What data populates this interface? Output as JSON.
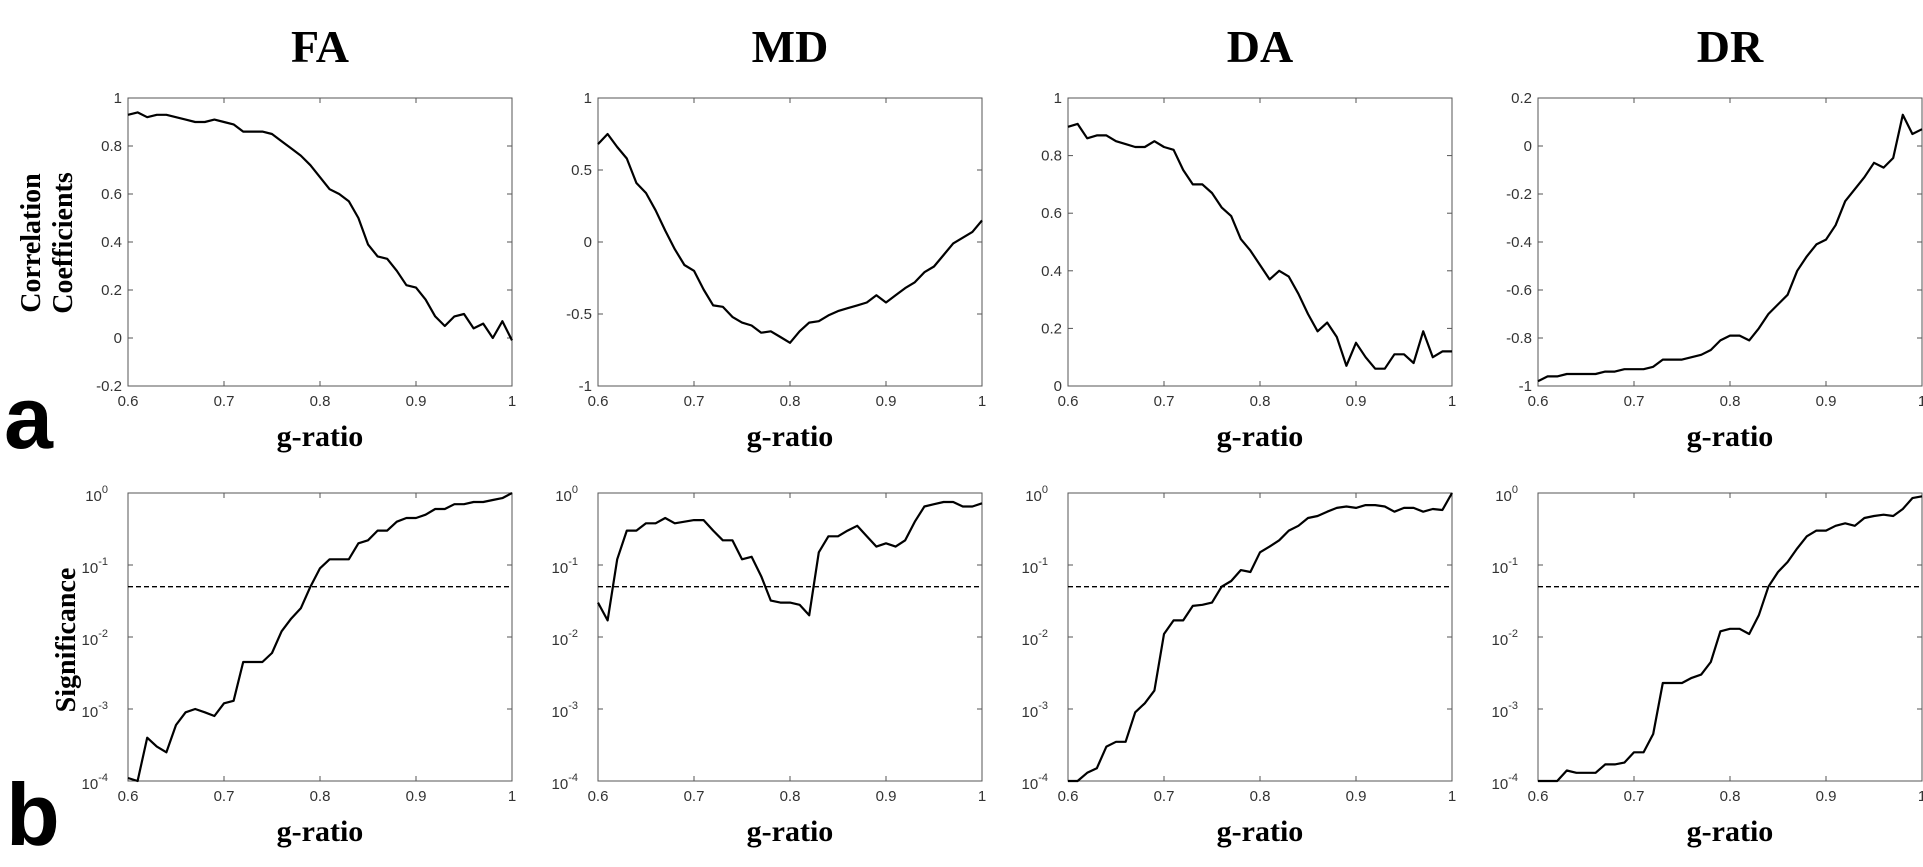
{
  "figure": {
    "row_labels": [
      "a",
      "b"
    ],
    "row_a_ylabel": [
      "Correlation",
      "Coefficients"
    ],
    "row_b_ylabel": "Significance"
  },
  "chart_data": [
    {
      "type": "line",
      "row": "a",
      "title": "FA",
      "xlabel": "g-ratio",
      "ylabel": "Correlation Coefficients",
      "xlim": [
        0.6,
        1
      ],
      "ylim": [
        -0.2,
        1
      ],
      "xticks": [
        0.6,
        0.7,
        0.8,
        0.9,
        1
      ],
      "xtick_labels": [
        "0.6",
        "0.7",
        "0.8",
        "0.9",
        "1"
      ],
      "yticks": [
        -0.2,
        0,
        0.2,
        0.4,
        0.6,
        0.8,
        1
      ],
      "ytick_labels": [
        "-0.2",
        "0",
        "0.2",
        "0.4",
        "0.6",
        "0.8",
        "1"
      ],
      "x": [
        0.6,
        0.61,
        0.62,
        0.63,
        0.64,
        0.65,
        0.66,
        0.67,
        0.68,
        0.69,
        0.7,
        0.71,
        0.72,
        0.73,
        0.74,
        0.75,
        0.76,
        0.77,
        0.78,
        0.79,
        0.8,
        0.81,
        0.82,
        0.83,
        0.84,
        0.85,
        0.86,
        0.87,
        0.88,
        0.89,
        0.9,
        0.91,
        0.92,
        0.93,
        0.94,
        0.95,
        0.96,
        0.97,
        0.98,
        0.99,
        1.0
      ],
      "y": [
        0.93,
        0.94,
        0.92,
        0.93,
        0.93,
        0.92,
        0.91,
        0.9,
        0.9,
        0.91,
        0.9,
        0.89,
        0.86,
        0.86,
        0.86,
        0.85,
        0.82,
        0.79,
        0.76,
        0.72,
        0.67,
        0.62,
        0.6,
        0.57,
        0.5,
        0.39,
        0.34,
        0.33,
        0.28,
        0.22,
        0.21,
        0.16,
        0.09,
        0.05,
        0.09,
        0.1,
        0.04,
        0.06,
        0.0,
        0.07,
        -0.01
      ]
    },
    {
      "type": "line",
      "row": "a",
      "title": "MD",
      "xlabel": "g-ratio",
      "ylabel": "Correlation Coefficients",
      "xlim": [
        0.6,
        1
      ],
      "ylim": [
        -1,
        1
      ],
      "xticks": [
        0.6,
        0.7,
        0.8,
        0.9,
        1
      ],
      "xtick_labels": [
        "0.6",
        "0.7",
        "0.8",
        "0.9",
        "1"
      ],
      "yticks": [
        -1,
        -0.5,
        0,
        0.5,
        1
      ],
      "ytick_labels": [
        "-1",
        "-0.5",
        "0",
        "0.5",
        "1"
      ],
      "x": [
        0.6,
        0.61,
        0.62,
        0.63,
        0.64,
        0.65,
        0.66,
        0.67,
        0.68,
        0.69,
        0.7,
        0.71,
        0.72,
        0.73,
        0.74,
        0.75,
        0.76,
        0.77,
        0.78,
        0.79,
        0.8,
        0.81,
        0.82,
        0.83,
        0.84,
        0.85,
        0.86,
        0.87,
        0.88,
        0.89,
        0.9,
        0.91,
        0.92,
        0.93,
        0.94,
        0.95,
        0.96,
        0.97,
        0.98,
        0.99,
        1.0
      ],
      "y": [
        0.68,
        0.75,
        0.66,
        0.58,
        0.41,
        0.34,
        0.22,
        0.08,
        -0.05,
        -0.16,
        -0.2,
        -0.33,
        -0.44,
        -0.45,
        -0.52,
        -0.56,
        -0.58,
        -0.63,
        -0.62,
        -0.66,
        -0.7,
        -0.62,
        -0.56,
        -0.55,
        -0.51,
        -0.48,
        -0.46,
        -0.44,
        -0.42,
        -0.37,
        -0.42,
        -0.37,
        -0.32,
        -0.28,
        -0.21,
        -0.17,
        -0.09,
        -0.01,
        0.03,
        0.07,
        0.15
      ]
    },
    {
      "type": "line",
      "row": "a",
      "title": "DA",
      "xlabel": "g-ratio",
      "ylabel": "Correlation Coefficients",
      "xlim": [
        0.6,
        1
      ],
      "ylim": [
        0,
        1
      ],
      "xticks": [
        0.6,
        0.7,
        0.8,
        0.9,
        1
      ],
      "xtick_labels": [
        "0.6",
        "0.7",
        "0.8",
        "0.9",
        "1"
      ],
      "yticks": [
        0,
        0.2,
        0.4,
        0.6,
        0.8,
        1
      ],
      "ytick_labels": [
        "0",
        "0.2",
        "0.4",
        "0.6",
        "0.8",
        "1"
      ],
      "x": [
        0.6,
        0.61,
        0.62,
        0.63,
        0.64,
        0.65,
        0.66,
        0.67,
        0.68,
        0.69,
        0.7,
        0.71,
        0.72,
        0.73,
        0.74,
        0.75,
        0.76,
        0.77,
        0.78,
        0.79,
        0.8,
        0.81,
        0.82,
        0.83,
        0.84,
        0.85,
        0.86,
        0.87,
        0.88,
        0.89,
        0.9,
        0.91,
        0.92,
        0.93,
        0.94,
        0.95,
        0.96,
        0.97,
        0.98,
        0.99,
        1.0
      ],
      "y": [
        0.9,
        0.91,
        0.86,
        0.87,
        0.87,
        0.85,
        0.84,
        0.83,
        0.83,
        0.85,
        0.83,
        0.82,
        0.75,
        0.7,
        0.7,
        0.67,
        0.62,
        0.59,
        0.51,
        0.47,
        0.42,
        0.37,
        0.4,
        0.38,
        0.32,
        0.25,
        0.19,
        0.22,
        0.17,
        0.07,
        0.15,
        0.1,
        0.06,
        0.06,
        0.11,
        0.11,
        0.08,
        0.19,
        0.1,
        0.12,
        0.12
      ]
    },
    {
      "type": "line",
      "row": "a",
      "title": "DR",
      "xlabel": "g-ratio",
      "ylabel": "Correlation Coefficients",
      "xlim": [
        0.6,
        1
      ],
      "ylim": [
        -1,
        0.2
      ],
      "xticks": [
        0.6,
        0.7,
        0.8,
        0.9,
        1
      ],
      "xtick_labels": [
        "0.6",
        "0.7",
        "0.8",
        "0.9",
        "1"
      ],
      "yticks": [
        -1,
        -0.8,
        -0.6,
        -0.4,
        -0.2,
        0,
        0.2
      ],
      "ytick_labels": [
        "-1",
        "-0.8",
        "-0.6",
        "-0.4",
        "-0.2",
        "0",
        "0.2"
      ],
      "x": [
        0.6,
        0.61,
        0.62,
        0.63,
        0.64,
        0.65,
        0.66,
        0.67,
        0.68,
        0.69,
        0.7,
        0.71,
        0.72,
        0.73,
        0.74,
        0.75,
        0.76,
        0.77,
        0.78,
        0.79,
        0.8,
        0.81,
        0.82,
        0.83,
        0.84,
        0.85,
        0.86,
        0.87,
        0.88,
        0.89,
        0.9,
        0.91,
        0.92,
        0.93,
        0.94,
        0.95,
        0.96,
        0.97,
        0.98,
        0.99,
        1.0
      ],
      "y": [
        -0.98,
        -0.96,
        -0.96,
        -0.95,
        -0.95,
        -0.95,
        -0.95,
        -0.94,
        -0.94,
        -0.93,
        -0.93,
        -0.93,
        -0.92,
        -0.89,
        -0.89,
        -0.89,
        -0.88,
        -0.87,
        -0.85,
        -0.81,
        -0.79,
        -0.79,
        -0.81,
        -0.76,
        -0.7,
        -0.66,
        -0.62,
        -0.52,
        -0.46,
        -0.41,
        -0.39,
        -0.33,
        -0.23,
        -0.18,
        -0.13,
        -0.07,
        -0.09,
        -0.05,
        0.13,
        0.05,
        0.07
      ]
    },
    {
      "type": "line",
      "row": "b",
      "title": "FA",
      "xlabel": "g-ratio",
      "ylabel": "Significance",
      "xlim": [
        0.6,
        1
      ],
      "ylim": [
        0.0001,
        1
      ],
      "log_y": true,
      "threshold": 0.05,
      "xticks": [
        0.6,
        0.7,
        0.8,
        0.9,
        1
      ],
      "xtick_labels": [
        "0.6",
        "0.7",
        "0.8",
        "0.9",
        "1"
      ],
      "yticks": [
        0.0001,
        0.001,
        0.01,
        0.1,
        1
      ],
      "ytick_bases": [
        "10",
        "10",
        "10",
        "10",
        "10"
      ],
      "ytick_exponents": [
        "-4",
        "-3",
        "-2",
        "-1",
        "0"
      ],
      "x": [
        0.6,
        0.61,
        0.62,
        0.63,
        0.64,
        0.65,
        0.66,
        0.67,
        0.68,
        0.69,
        0.7,
        0.71,
        0.72,
        0.73,
        0.74,
        0.75,
        0.76,
        0.77,
        0.78,
        0.79,
        0.8,
        0.81,
        0.82,
        0.83,
        0.84,
        0.85,
        0.86,
        0.87,
        0.88,
        0.89,
        0.9,
        0.91,
        0.92,
        0.93,
        0.94,
        0.95,
        0.96,
        0.97,
        0.98,
        0.99,
        1.0
      ],
      "y": [
        0.00011,
        0.0001,
        0.0004,
        0.0003,
        0.00025,
        0.0006,
        0.0009,
        0.001,
        0.0009,
        0.0008,
        0.0012,
        0.0013,
        0.0045,
        0.0045,
        0.0045,
        0.006,
        0.012,
        0.018,
        0.025,
        0.05,
        0.09,
        0.12,
        0.12,
        0.12,
        0.2,
        0.22,
        0.3,
        0.3,
        0.4,
        0.45,
        0.45,
        0.5,
        0.6,
        0.6,
        0.7,
        0.7,
        0.75,
        0.75,
        0.8,
        0.85,
        1.0
      ]
    },
    {
      "type": "line",
      "row": "b",
      "title": "MD",
      "xlabel": "g-ratio",
      "ylabel": "Significance",
      "xlim": [
        0.6,
        1
      ],
      "ylim": [
        0.0001,
        1
      ],
      "log_y": true,
      "threshold": 0.05,
      "xticks": [
        0.6,
        0.7,
        0.8,
        0.9,
        1
      ],
      "xtick_labels": [
        "0.6",
        "0.7",
        "0.8",
        "0.9",
        "1"
      ],
      "yticks": [
        0.0001,
        0.001,
        0.01,
        0.1,
        1
      ],
      "ytick_bases": [
        "10",
        "10",
        "10",
        "10",
        "10"
      ],
      "ytick_exponents": [
        "-4",
        "-3",
        "-2",
        "-1",
        "0"
      ],
      "x": [
        0.6,
        0.61,
        0.62,
        0.63,
        0.64,
        0.65,
        0.66,
        0.67,
        0.68,
        0.69,
        0.7,
        0.71,
        0.72,
        0.73,
        0.74,
        0.75,
        0.76,
        0.77,
        0.78,
        0.79,
        0.8,
        0.81,
        0.82,
        0.83,
        0.84,
        0.85,
        0.86,
        0.87,
        0.88,
        0.89,
        0.9,
        0.91,
        0.92,
        0.93,
        0.94,
        0.95,
        0.96,
        0.97,
        0.98,
        0.99,
        1.0
      ],
      "y": [
        0.03,
        0.017,
        0.12,
        0.3,
        0.3,
        0.38,
        0.38,
        0.45,
        0.38,
        0.4,
        0.42,
        0.42,
        0.3,
        0.22,
        0.22,
        0.12,
        0.13,
        0.07,
        0.032,
        0.03,
        0.03,
        0.028,
        0.02,
        0.15,
        0.25,
        0.25,
        0.3,
        0.35,
        0.25,
        0.18,
        0.2,
        0.18,
        0.22,
        0.4,
        0.65,
        0.7,
        0.75,
        0.75,
        0.65,
        0.65,
        0.72
      ]
    },
    {
      "type": "line",
      "row": "b",
      "title": "DA",
      "xlabel": "g-ratio",
      "ylabel": "Significance",
      "xlim": [
        0.6,
        1
      ],
      "ylim": [
        0.0001,
        1
      ],
      "log_y": true,
      "threshold": 0.05,
      "xticks": [
        0.6,
        0.7,
        0.8,
        0.9,
        1
      ],
      "xtick_labels": [
        "0.6",
        "0.7",
        "0.8",
        "0.9",
        "1"
      ],
      "yticks": [
        0.0001,
        0.001,
        0.01,
        0.1,
        1
      ],
      "ytick_bases": [
        "10",
        "10",
        "10",
        "10",
        "10"
      ],
      "ytick_exponents": [
        "-4",
        "-3",
        "-2",
        "-1",
        "0"
      ],
      "x": [
        0.6,
        0.61,
        0.62,
        0.63,
        0.64,
        0.65,
        0.66,
        0.67,
        0.68,
        0.69,
        0.7,
        0.71,
        0.72,
        0.73,
        0.74,
        0.75,
        0.76,
        0.77,
        0.78,
        0.79,
        0.8,
        0.81,
        0.82,
        0.83,
        0.84,
        0.85,
        0.86,
        0.87,
        0.88,
        0.89,
        0.9,
        0.91,
        0.92,
        0.93,
        0.94,
        0.95,
        0.96,
        0.97,
        0.98,
        0.99,
        1.0
      ],
      "y": [
        0.0001,
        0.0001,
        0.00013,
        0.00015,
        0.0003,
        0.00035,
        0.00035,
        0.0009,
        0.0012,
        0.0018,
        0.011,
        0.017,
        0.017,
        0.027,
        0.028,
        0.03,
        0.05,
        0.06,
        0.085,
        0.08,
        0.15,
        0.18,
        0.22,
        0.3,
        0.35,
        0.45,
        0.48,
        0.55,
        0.62,
        0.65,
        0.62,
        0.68,
        0.68,
        0.65,
        0.55,
        0.62,
        0.62,
        0.55,
        0.6,
        0.58,
        1.0
      ]
    },
    {
      "type": "line",
      "row": "b",
      "title": "DR",
      "xlabel": "g-ratio",
      "ylabel": "Significance",
      "xlim": [
        0.6,
        1
      ],
      "ylim": [
        0.0001,
        1
      ],
      "log_y": true,
      "threshold": 0.05,
      "xticks": [
        0.6,
        0.7,
        0.8,
        0.9,
        1
      ],
      "xtick_labels": [
        "0.6",
        "0.7",
        "0.8",
        "0.9",
        "1"
      ],
      "yticks": [
        0.0001,
        0.001,
        0.01,
        0.1,
        1
      ],
      "ytick_bases": [
        "10",
        "10",
        "10",
        "10",
        "10"
      ],
      "ytick_exponents": [
        "-4",
        "-3",
        "-2",
        "-1",
        "0"
      ],
      "x": [
        0.6,
        0.61,
        0.62,
        0.63,
        0.64,
        0.65,
        0.66,
        0.67,
        0.68,
        0.69,
        0.7,
        0.71,
        0.72,
        0.73,
        0.74,
        0.75,
        0.76,
        0.77,
        0.78,
        0.79,
        0.8,
        0.81,
        0.82,
        0.83,
        0.84,
        0.85,
        0.86,
        0.87,
        0.88,
        0.89,
        0.9,
        0.91,
        0.92,
        0.93,
        0.94,
        0.95,
        0.96,
        0.97,
        0.98,
        0.99,
        1.0
      ],
      "y": [
        0.0001,
        0.0001,
        0.0001,
        0.00014,
        0.00013,
        0.00013,
        0.00013,
        0.00017,
        0.00017,
        0.00018,
        0.00025,
        0.00025,
        0.00045,
        0.0023,
        0.0023,
        0.0023,
        0.0027,
        0.003,
        0.0045,
        0.012,
        0.013,
        0.013,
        0.011,
        0.02,
        0.05,
        0.08,
        0.11,
        0.17,
        0.25,
        0.3,
        0.3,
        0.35,
        0.38,
        0.35,
        0.45,
        0.48,
        0.5,
        0.48,
        0.6,
        0.85,
        0.9
      ]
    }
  ]
}
